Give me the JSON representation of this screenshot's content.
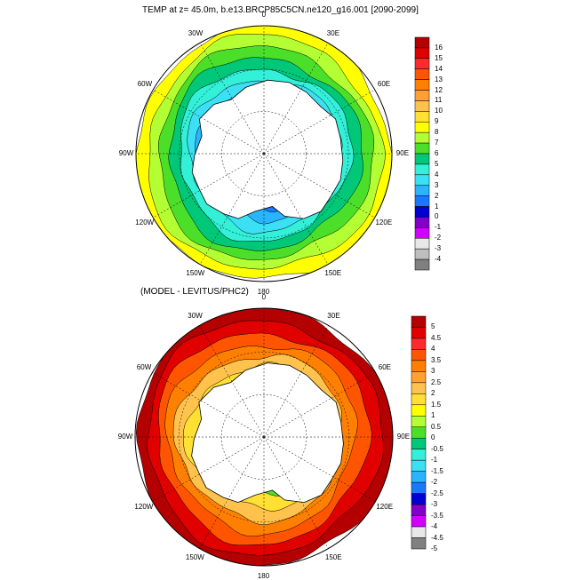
{
  "top_map": {
    "title": "TEMP at z=  45.0m, b.e13.BRCP85C5CN.ne120_g16.001 [2090-2099]",
    "lon_labels": [
      "0",
      "30E",
      "60E",
      "90E",
      "120E",
      "150E",
      "180",
      "150W",
      "120W",
      "90W",
      "60W",
      "30W"
    ],
    "colorbar": {
      "labels": [
        "16",
        "15",
        "14",
        "13",
        "12",
        "11",
        "10",
        "9",
        "8",
        "7",
        "6",
        "5",
        "4",
        "3",
        "2",
        "1",
        "0",
        "-1",
        "-2",
        "-3",
        "-4"
      ],
      "colors": [
        "#b40000",
        "#e00000",
        "#ff2a2a",
        "#ff5500",
        "#ff8000",
        "#ffa033",
        "#ffc24d",
        "#ffe033",
        "#ffff00",
        "#b4ff33",
        "#4cdf2a",
        "#00c878",
        "#33f0d8",
        "#3ce0f5",
        "#28b4ff",
        "#1a78ff",
        "#0000d2",
        "#8200c8",
        "#d200ff",
        "#e8e8e8",
        "#bebebe",
        "#808080"
      ]
    }
  },
  "bottom_map": {
    "title": "(MODEL - LEVITUS/PHC2)",
    "lon_labels": [
      "0",
      "30E",
      "60E",
      "90E",
      "120E",
      "150E",
      "180",
      "150W",
      "120W",
      "90W",
      "60W",
      "30W"
    ],
    "colorbar": {
      "labels": [
        "5",
        "4.5",
        "4",
        "3.5",
        "3",
        "2.5",
        "2",
        "1.5",
        "1",
        "0.5",
        "0",
        "-0.5",
        "-1",
        "-1.5",
        "-2",
        "-2.5",
        "-3",
        "-3.5",
        "-4",
        "-4.5",
        "-5"
      ],
      "colors": [
        "#b40000",
        "#e00000",
        "#ff2a2a",
        "#ff5500",
        "#ff8000",
        "#ffa033",
        "#ffc24d",
        "#ffe033",
        "#ffff00",
        "#b4ff33",
        "#4cdf2a",
        "#00c878",
        "#33f0d8",
        "#3ce0f5",
        "#28b4ff",
        "#1a78ff",
        "#0000d2",
        "#8200c8",
        "#d200ff",
        "#e8e8e8",
        "#808080"
      ]
    }
  }
}
